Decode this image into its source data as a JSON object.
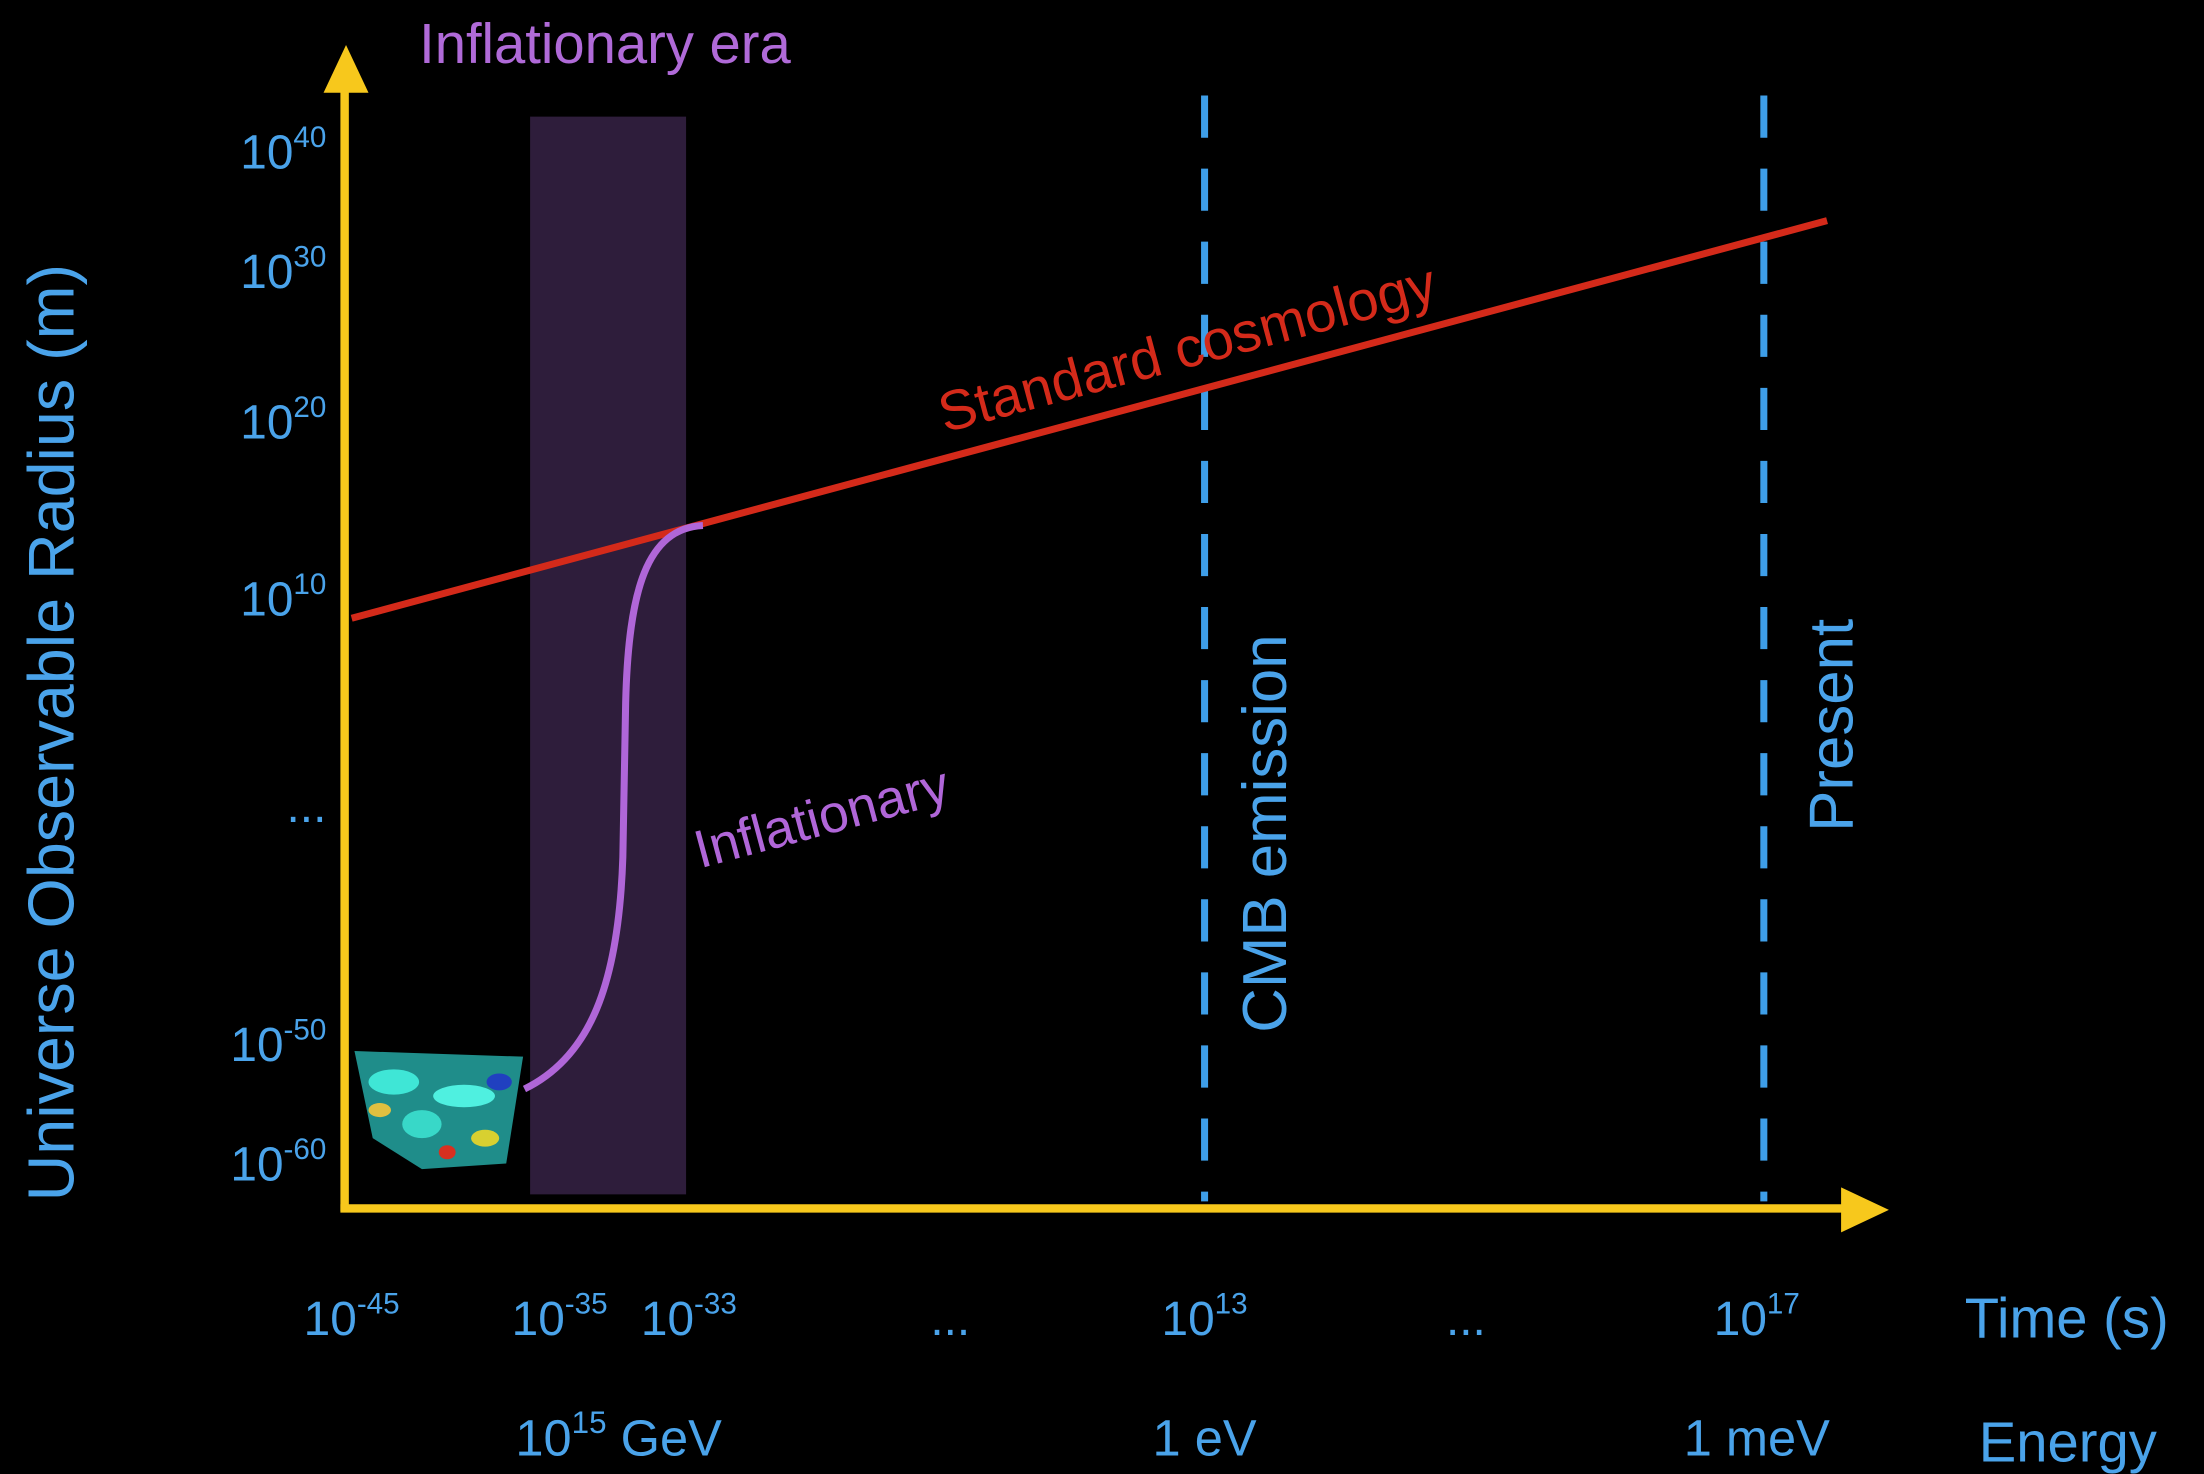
{
  "region_label": "Inflationary era",
  "y_axis": {
    "label": "Universe Observable Radius (m)",
    "ticks": [
      {
        "base": "10",
        "exponent": "40"
      },
      {
        "base": "10",
        "exponent": "30"
      },
      {
        "base": "10",
        "exponent": "20"
      },
      {
        "base": "10",
        "exponent": "10"
      },
      {
        "base": "...",
        "exponent": ""
      },
      {
        "base": "10",
        "exponent": "-50"
      },
      {
        "base": "10",
        "exponent": "-60"
      }
    ]
  },
  "x_axis": {
    "label": "Time (s)",
    "ticks": [
      {
        "base": "10",
        "exponent": "-45"
      },
      {
        "base": "10",
        "exponent": "-35"
      },
      {
        "base": "10",
        "exponent": "-33"
      },
      {
        "base": "...",
        "exponent": ""
      },
      {
        "base": "10",
        "exponent": "13"
      },
      {
        "base": "...",
        "exponent": ""
      },
      {
        "base": "10",
        "exponent": "17"
      }
    ]
  },
  "energy_axis": {
    "label": "Energy",
    "ticks": [
      {
        "base": "10",
        "exponent": "15",
        "unit": " GeV"
      },
      {
        "base": "1 eV",
        "exponent": "",
        "unit": ""
      },
      {
        "base": "1 meV",
        "exponent": "",
        "unit": ""
      }
    ]
  },
  "curves": {
    "standard": "Standard cosmology",
    "inflationary": "Inflationary"
  },
  "events": {
    "cmb": "CMB emission",
    "present": "Present"
  }
}
